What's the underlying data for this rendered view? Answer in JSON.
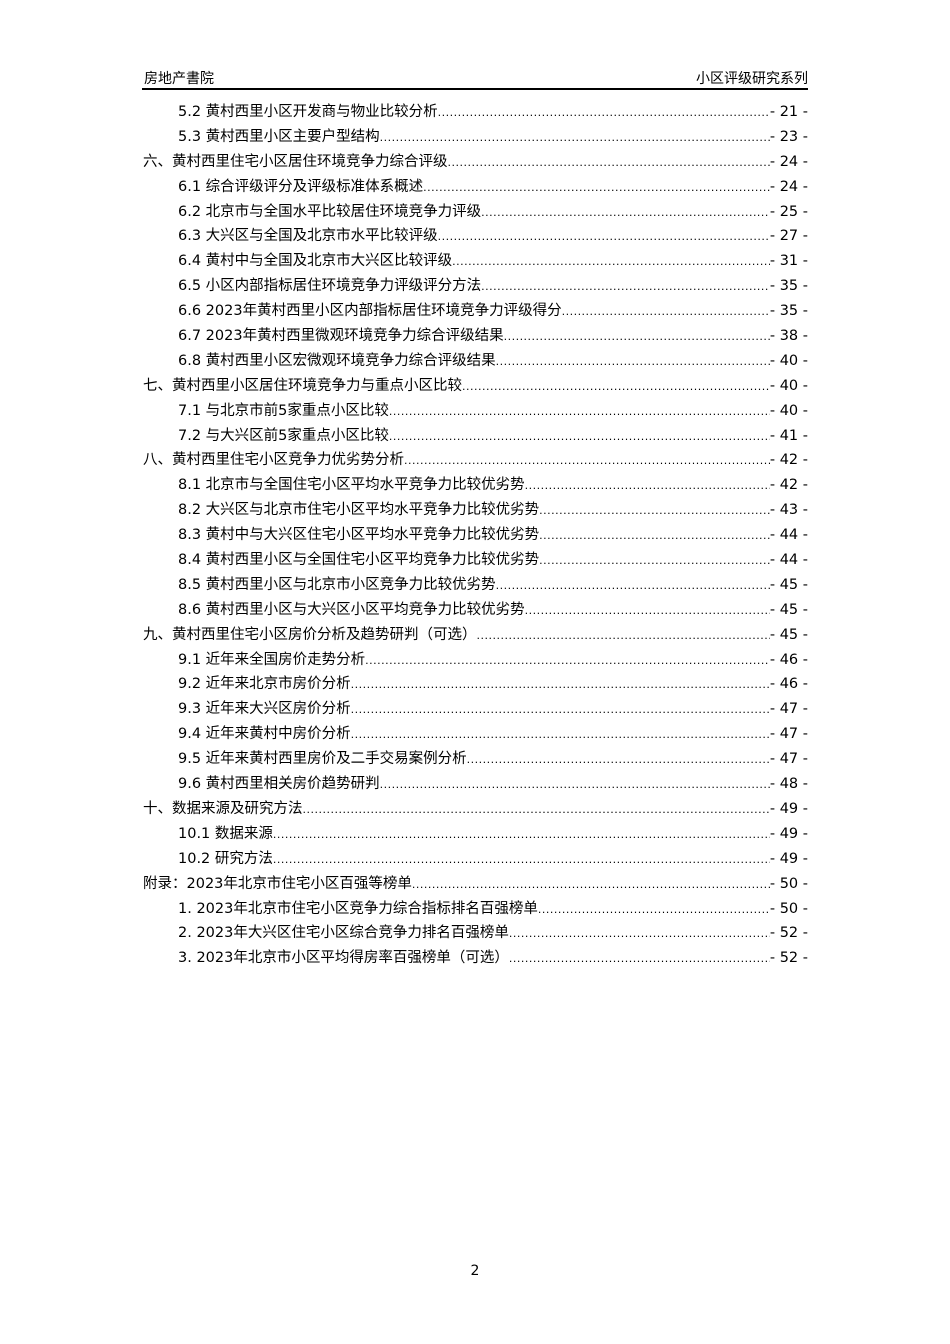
{
  "header": {
    "left": "房地产書院",
    "right": "小区评级研究系列"
  },
  "toc": [
    {
      "level": 2,
      "title": "5.2 黄村西里小区开发商与物业比较分析",
      "page": "- 21 -"
    },
    {
      "level": 2,
      "title": "5.3 黄村西里小区主要户型结构",
      "page": "- 23 -"
    },
    {
      "level": 1,
      "title": "六、黄村西里住宅小区居住环境竞争力综合评级",
      "page": "- 24 -"
    },
    {
      "level": 2,
      "title": "6.1 综合评级评分及评级标准体系概述",
      "page": "- 24 -"
    },
    {
      "level": 2,
      "title": "6.2 北京市与全国水平比较居住环境竞争力评级",
      "page": "- 25 -"
    },
    {
      "level": 2,
      "title": "6.3 大兴区与全国及北京市水平比较评级",
      "page": "- 27 -"
    },
    {
      "level": 2,
      "title": "6.4 黄村中与全国及北京市大兴区比较评级",
      "page": "- 31 -"
    },
    {
      "level": 2,
      "title": "6.5 小区内部指标居住环境竞争力评级评分方法",
      "page": "- 35 -"
    },
    {
      "level": 2,
      "title": "6.6 2023年黄村西里小区内部指标居住环境竞争力评级得分",
      "page": "- 35 -"
    },
    {
      "level": 2,
      "title": "6.7 2023年黄村西里微观环境竞争力综合评级结果",
      "page": "- 38 -"
    },
    {
      "level": 2,
      "title": "6.8 黄村西里小区宏微观环境竞争力综合评级结果",
      "page": "- 40 -"
    },
    {
      "level": 1,
      "title": "七、黄村西里小区居住环境竞争力与重点小区比较",
      "page": "- 40 -"
    },
    {
      "level": 2,
      "title": "7.1 与北京市前5家重点小区比较",
      "page": "- 40 -"
    },
    {
      "level": 2,
      "title": "7.2 与大兴区前5家重点小区比较",
      "page": "- 41 -"
    },
    {
      "level": 1,
      "title": "八、黄村西里住宅小区竞争力优劣势分析",
      "page": "- 42 -"
    },
    {
      "level": 2,
      "title": "8.1 北京市与全国住宅小区平均水平竞争力比较优劣势",
      "page": "- 42 -"
    },
    {
      "level": 2,
      "title": "8.2 大兴区与北京市住宅小区平均水平竞争力比较优劣势",
      "page": "- 43 -"
    },
    {
      "level": 2,
      "title": "8.3 黄村中与大兴区住宅小区平均水平竞争力比较优劣势",
      "page": "- 44 -"
    },
    {
      "level": 2,
      "title": "8.4 黄村西里小区与全国住宅小区平均竞争力比较优劣势",
      "page": "- 44 -"
    },
    {
      "level": 2,
      "title": "8.5 黄村西里小区与北京市小区竞争力比较优劣势",
      "page": "- 45 -"
    },
    {
      "level": 2,
      "title": "8.6 黄村西里小区与大兴区小区平均竞争力比较优劣势",
      "page": "- 45 -"
    },
    {
      "level": 1,
      "title": "九、黄村西里住宅小区房价分析及趋势研判（可选）",
      "page": "- 45 -"
    },
    {
      "level": 2,
      "title": "9.1 近年来全国房价走势分析",
      "page": "- 46 -"
    },
    {
      "level": 2,
      "title": "9.2 近年来北京市房价分析",
      "page": "- 46 -"
    },
    {
      "level": 2,
      "title": "9.3 近年来大兴区房价分析",
      "page": "- 47 -"
    },
    {
      "level": 2,
      "title": "9.4 近年来黄村中房价分析",
      "page": "- 47 -"
    },
    {
      "level": 2,
      "title": "9.5 近年来黄村西里房价及二手交易案例分析",
      "page": "- 47 -"
    },
    {
      "level": 2,
      "title": "9.6 黄村西里相关房价趋势研判",
      "page": "- 48 -"
    },
    {
      "level": 1,
      "title": "十、数据来源及研究方法",
      "page": "- 49 -"
    },
    {
      "level": 2,
      "title": "10.1 数据来源",
      "page": "- 49 -"
    },
    {
      "level": 2,
      "title": "10.2 研究方法",
      "page": "- 49 -"
    },
    {
      "level": 1,
      "title": "附录：2023年北京市住宅小区百强等榜单",
      "page": "- 50 -"
    },
    {
      "level": 2,
      "title": "1. 2023年北京市住宅小区竞争力综合指标排名百强榜单",
      "page": "- 50 -"
    },
    {
      "level": 2,
      "title": "2. 2023年大兴区住宅小区综合竞争力排名百强榜单",
      "page": "- 52 -"
    },
    {
      "level": 2,
      "title": "3. 2023年北京市小区平均得房率百强榜单（可选）",
      "page": "- 52 -"
    }
  ],
  "footer": {
    "page_number": "2"
  }
}
